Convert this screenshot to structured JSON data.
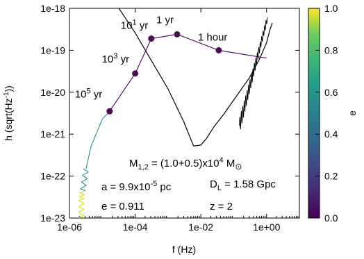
{
  "chart_data": {
    "type": "line",
    "xlabel": "f (Hz)",
    "ylabel": "h (sqrt(Hz",
    "ylabel_sup": "-1",
    "ylabel_end": "))",
    "x_scale": "log",
    "y_scale": "log",
    "xlim": [
      1e-06,
      10
    ],
    "ylim": [
      1e-23,
      1e-18
    ],
    "x_ticks": [
      {
        "value": 1e-06,
        "label": "1e-06"
      },
      {
        "value": 0.0001,
        "label": "1e-04"
      },
      {
        "value": 0.01,
        "label": "1e-02"
      },
      {
        "value": 1,
        "label": "1e+00"
      }
    ],
    "y_ticks": [
      {
        "value": 1e-23,
        "label": "1e-23"
      },
      {
        "value": 1e-22,
        "label": "1e-22"
      },
      {
        "value": 1e-21,
        "label": "1e-21"
      },
      {
        "value": 1e-20,
        "label": "1e-20"
      },
      {
        "value": 1e-19,
        "label": "1e-19"
      },
      {
        "value": 1e-18,
        "label": "1e-18"
      }
    ],
    "colorbar": {
      "label": "e",
      "range": [
        0,
        1
      ],
      "ticks": [
        "0.0",
        "0.2",
        "0.4",
        "0.6",
        "0.8",
        "1.0"
      ],
      "colormap": "viridis",
      "colors": [
        "#440154",
        "#3b528b",
        "#21918c",
        "#5ec962",
        "#fde725"
      ]
    },
    "sensitivity_curve": {
      "color": "#000000",
      "points": [
        [
          3.2e-05,
          1e-18
        ],
        [
          0.0001,
          2.6e-19
        ],
        [
          0.0003,
          6e-20
        ],
        [
          0.001,
          1.2e-20
        ],
        [
          0.003,
          2e-21
        ],
        [
          0.006,
          5.2e-22
        ],
        [
          0.01,
          5.5e-22
        ],
        [
          0.015,
          8e-22
        ],
        [
          0.025,
          1.5e-21
        ],
        [
          0.05,
          3e-21
        ],
        [
          0.1,
          6.5e-21
        ],
        [
          0.3,
          2.2e-20
        ],
        [
          0.6,
          6e-20
        ],
        [
          1.0,
          1.5e-19
        ],
        [
          1.25,
          3e-19
        ],
        [
          1.5,
          4.5e-19
        ]
      ]
    },
    "track": {
      "low_freq_points": [
        [
          2.3e-06,
          1e-23
        ],
        [
          2.3e-06,
          2.6e-23
        ],
        [
          2.6e-06,
          5e-23
        ],
        [
          3.2e-06,
          1.5e-22
        ],
        [
          4.5e-06,
          5e-22
        ],
        [
          1e-05,
          2.3e-21
        ]
      ],
      "points": [
        [
          1e-05,
          2.3e-21
        ],
        [
          1.67e-05,
          3.5e-21
        ],
        [
          0.0001,
          2.8e-20
        ],
        [
          0.00031,
          1.9e-19
        ],
        [
          0.0019,
          2.4e-19
        ],
        [
          0.035,
          1e-19
        ],
        [
          1.0,
          6.5e-20
        ]
      ],
      "color_start": "#d8e219",
      "color_mid": "#21918c",
      "color_end": "#440154"
    },
    "markers": [
      {
        "label": "10",
        "sup": "5",
        "unit": " yr",
        "x": 1.67e-05,
        "y": 3.5e-21
      },
      {
        "label": "10",
        "sup": "3",
        "unit": " yr",
        "x": 0.0001,
        "y": 2.8e-20
      },
      {
        "label": "10",
        "sup": "1",
        "unit": " yr",
        "x": 0.00031,
        "y": 1.9e-19
      },
      {
        "label": "1 yr",
        "sup": "",
        "unit": "",
        "x": 0.0019,
        "y": 2.4e-19
      },
      {
        "label": "1 hour",
        "sup": "",
        "unit": "",
        "x": 0.035,
        "y": 1e-19
      }
    ],
    "marker_color": "#4b0c55",
    "annotations": {
      "mass_prefix": "M",
      "mass_sub": "1,2",
      "mass_mid": " = (1.0+0.5)x10",
      "mass_sup": "4",
      "mass_unit": " M",
      "mass_sub2": "⊙",
      "a": "a = 9.9x10",
      "a_sup": "-5",
      "a_unit": " pc",
      "dl_prefix": "D",
      "dl_sub": "L",
      "dl_value": " = 1.58 Gpc",
      "e": "e = 0.911",
      "z": "z  =  2"
    }
  }
}
